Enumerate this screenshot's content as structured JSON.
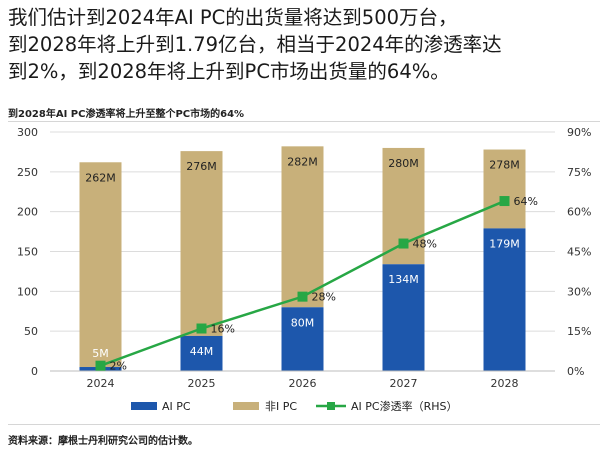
{
  "headline": {
    "line1": "我们估计到2024年AI PC的出货量将达到500万台，",
    "line2": "到2028年将上升到1.79亿台，相当于2024年的渗透率达",
    "line3": "到2%，到2028年将上升到PC市场出货量的64%。"
  },
  "source_note": "资料来源：摩根士丹利研究公司的估计数。",
  "colors": {
    "ai_pc": "#1d57ac",
    "non_ai_pc": "#c8b07a",
    "penetration": "#27a745",
    "grid": "#dcdcdc",
    "axis_text": "#333333"
  },
  "chart_data": {
    "type": "bar",
    "stacked": true,
    "title": "到2028年AI PC渗透率将上升至整个PC市场的64%",
    "categories": [
      "2024",
      "2025",
      "2026",
      "2027",
      "2028"
    ],
    "series": [
      {
        "name": "AI PC",
        "values": [
          5,
          44,
          80,
          134,
          179
        ],
        "labels": [
          "5M",
          "44M",
          "80M",
          "134M",
          "179M"
        ]
      },
      {
        "name": "非I PC",
        "values": [
          257,
          232,
          202,
          146,
          99
        ],
        "total_labels": [
          "262M",
          "276M",
          "282M",
          "280M",
          "278M"
        ]
      }
    ],
    "line_series": {
      "name": "AI PC渗透率（RHS）",
      "axis": "right",
      "values": [
        2,
        16,
        28,
        48,
        64
      ],
      "labels": [
        "2%",
        "16%",
        "28%",
        "48%",
        "64%"
      ]
    },
    "ylim": [
      0,
      300
    ],
    "yticks": [
      "0",
      "50",
      "100",
      "150",
      "200",
      "250",
      "300"
    ],
    "y2lim": [
      0,
      90
    ],
    "y2ticks": [
      "0%",
      "15%",
      "30%",
      "45%",
      "60%",
      "75%",
      "90%"
    ],
    "legend": [
      "AI PC",
      "非I PC",
      "AI PC渗透率（RHS）"
    ],
    "legend_position": "bottom"
  }
}
